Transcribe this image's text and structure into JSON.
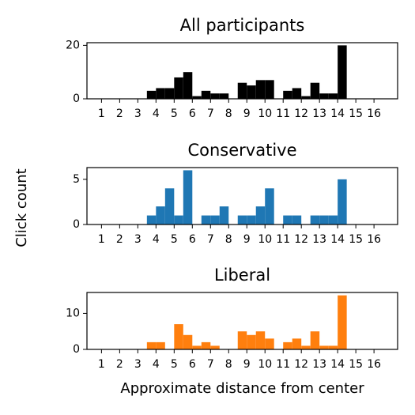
{
  "figure": {
    "ylabel": "Click count"
  },
  "chart_data": [
    {
      "type": "histogram",
      "title": "All participants",
      "color": "#000000",
      "bins": [
        3.5,
        4,
        4.5,
        5,
        5.5,
        6,
        6.5,
        7,
        7.5,
        8,
        8.5,
        9,
        9.5,
        10,
        10.5,
        11,
        11.5,
        12,
        12.5,
        13,
        13.5,
        14,
        14.5
      ],
      "counts": [
        3,
        4,
        4,
        8,
        10,
        1,
        3,
        2,
        2,
        0,
        6,
        5,
        7,
        7,
        0,
        3,
        4,
        1,
        6,
        2,
        2,
        20
      ],
      "xlim": [
        0.2,
        17.3
      ],
      "xticks": [
        1,
        2,
        3,
        4,
        5,
        6,
        7,
        8,
        9,
        10,
        11,
        12,
        13,
        14,
        15,
        16
      ],
      "ylim": [
        0,
        21
      ],
      "yticks": [
        0,
        20
      ]
    },
    {
      "type": "histogram",
      "title": "Conservative",
      "color": "#1f77b4",
      "bins": [
        3.5,
        4,
        4.5,
        5,
        5.5,
        6,
        6.5,
        7,
        7.5,
        8,
        8.5,
        9,
        9.5,
        10,
        10.5,
        11,
        11.5,
        12,
        12.5,
        13,
        13.5,
        14,
        14.5
      ],
      "counts": [
        1,
        2,
        4,
        1,
        6,
        0,
        1,
        1,
        2,
        0,
        1,
        1,
        2,
        4,
        0,
        1,
        1,
        0,
        1,
        1,
        1,
        5
      ],
      "xlim": [
        0.2,
        17.3
      ],
      "xticks": [
        1,
        2,
        3,
        4,
        5,
        6,
        7,
        8,
        9,
        10,
        11,
        12,
        13,
        14,
        15,
        16
      ],
      "ylim": [
        0,
        6.3
      ],
      "yticks": [
        0,
        5
      ]
    },
    {
      "type": "histogram",
      "title": "Liberal",
      "color": "#ff7f0e",
      "xlabel": "Approximate distance from center",
      "bins": [
        3.5,
        4,
        4.5,
        5,
        5.5,
        6,
        6.5,
        7,
        7.5,
        8,
        8.5,
        9,
        9.5,
        10,
        10.5,
        11,
        11.5,
        12,
        12.5,
        13,
        13.5,
        14,
        14.5
      ],
      "counts": [
        2,
        2,
        0,
        7,
        4,
        1,
        2,
        1,
        0,
        0,
        5,
        4,
        5,
        3,
        0,
        2,
        3,
        1,
        5,
        1,
        1,
        15
      ],
      "xlim": [
        0.2,
        17.3
      ],
      "xticks": [
        1,
        2,
        3,
        4,
        5,
        6,
        7,
        8,
        9,
        10,
        11,
        12,
        13,
        14,
        15,
        16
      ],
      "ylim": [
        0,
        15.8
      ],
      "yticks": [
        0,
        10
      ]
    }
  ]
}
